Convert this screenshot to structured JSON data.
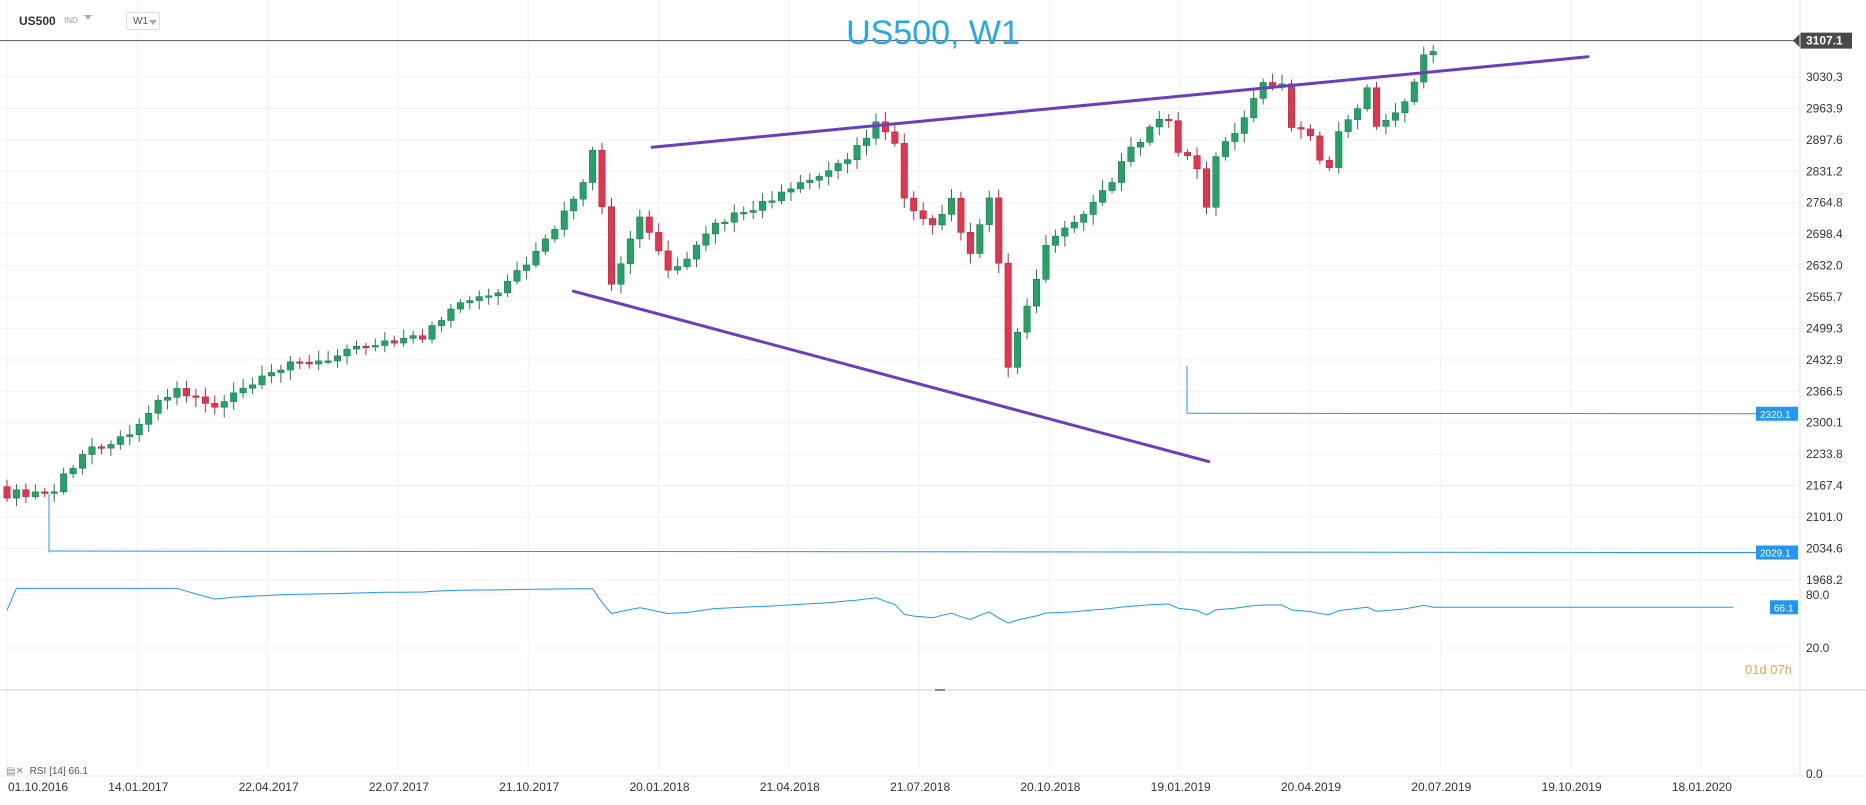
{
  "toolbar": {
    "symbol": "US500",
    "market": "IND",
    "timeframe": "W1"
  },
  "title": "US500, W1",
  "price_badge": "3107.1",
  "level_labels": [
    "2320.1",
    "2029.1"
  ],
  "countdown": "01d 07h",
  "rsi": {
    "label": "RSI",
    "period": "[14]",
    "value": "66.1",
    "ticks": [
      "80.0",
      "20.0",
      "0.0"
    ]
  },
  "colors": {
    "up": "#26a269",
    "down": "#e0364f",
    "trend": "#6a3fbf",
    "level": "#2196f3",
    "title": "#27a7e8"
  },
  "chart_data": {
    "type": "candlestick",
    "title": "US500, W1",
    "x_ticks": [
      "01.10.2016",
      "14.01.2017",
      "22.04.2017",
      "22.07.2017",
      "21.10.2017",
      "20.01.2018",
      "21.04.2018",
      "21.07.2018",
      "20.10.2018",
      "19.01.2019",
      "20.04.2019",
      "20.07.2019",
      "19.10.2019",
      "18.01.2020"
    ],
    "y_ticks": [
      3030.3,
      2963.9,
      2897.6,
      2831.2,
      2764.8,
      2698.4,
      2632.0,
      2565.7,
      2499.3,
      2432.9,
      2366.5,
      2300.1,
      2233.8,
      2167.4,
      2101.0,
      2034.6,
      1968.2
    ],
    "ylim": [
      1968.2,
      3107.1
    ],
    "current_price": 3107.1,
    "levels": [
      2320.1,
      2029.1
    ],
    "close_anchors": [
      [
        0,
        2150
      ],
      [
        5,
        2155
      ],
      [
        6,
        2190
      ],
      [
        9,
        2250
      ],
      [
        12,
        2265
      ],
      [
        16,
        2340
      ],
      [
        18,
        2370
      ],
      [
        22,
        2330
      ],
      [
        25,
        2370
      ],
      [
        30,
        2420
      ],
      [
        35,
        2440
      ],
      [
        40,
        2475
      ],
      [
        44,
        2480
      ],
      [
        48,
        2560
      ],
      [
        52,
        2580
      ],
      [
        55,
        2640
      ],
      [
        58,
        2705
      ],
      [
        61,
        2815
      ],
      [
        62,
        2870
      ],
      [
        63,
        2765
      ],
      [
        64,
        2600
      ],
      [
        67,
        2730
      ],
      [
        68,
        2700
      ],
      [
        70,
        2620
      ],
      [
        72,
        2640
      ],
      [
        75,
        2720
      ],
      [
        78,
        2750
      ],
      [
        81,
        2770
      ],
      [
        84,
        2800
      ],
      [
        87,
        2830
      ],
      [
        90,
        2880
      ],
      [
        92,
        2935
      ],
      [
        94,
        2885
      ],
      [
        95,
        2770
      ],
      [
        96,
        2740
      ],
      [
        98,
        2710
      ],
      [
        100,
        2770
      ],
      [
        102,
        2650
      ],
      [
        104,
        2775
      ],
      [
        105,
        2630
      ],
      [
        106,
        2420
      ],
      [
        107,
        2490
      ],
      [
        109,
        2595
      ],
      [
        110,
        2680
      ],
      [
        113,
        2715
      ],
      [
        116,
        2790
      ],
      [
        117,
        2815
      ],
      [
        118,
        2850
      ],
      [
        121,
        2920
      ],
      [
        123,
        2945
      ],
      [
        124,
        2880
      ],
      [
        126,
        2840
      ],
      [
        127,
        2750
      ],
      [
        128,
        2870
      ],
      [
        130,
        2910
      ],
      [
        132,
        2990
      ],
      [
        133,
        3010
      ],
      [
        135,
        3010
      ],
      [
        136,
        2930
      ],
      [
        138,
        2900
      ],
      [
        139,
        2860
      ],
      [
        140,
        2840
      ],
      [
        141,
        2920
      ],
      [
        143,
        2970
      ],
      [
        144,
        3000
      ],
      [
        145,
        2930
      ],
      [
        146,
        2945
      ],
      [
        148,
        2980
      ],
      [
        149,
        3020
      ],
      [
        150,
        3070
      ],
      [
        151,
        3093
      ]
    ],
    "upper_trendline": [
      [
        2018.06,
        2882
      ],
      [
        2019.96,
        3073
      ]
    ],
    "lower_trendline": [
      [
        2017.9,
        2578
      ],
      [
        2019.19,
        2218
      ]
    ],
    "rsi": {
      "period": 14,
      "last": 66.1,
      "ylim": [
        0,
        100
      ]
    }
  }
}
